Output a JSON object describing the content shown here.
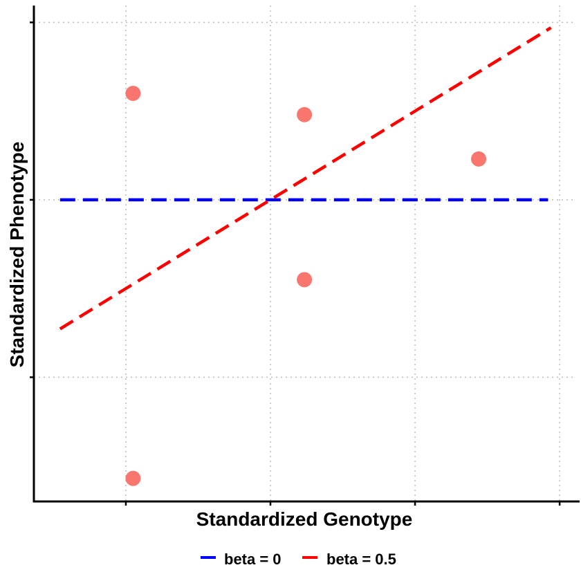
{
  "chart_data": {
    "type": "scatter",
    "title": "",
    "xlabel": "Standardized Genotype",
    "ylabel": "Standardized Phenotype",
    "xlim": [
      -1.636,
      2.1
    ],
    "ylim": [
      -1.7,
      1.095
    ],
    "x_ticks": [
      -1,
      0,
      1,
      2
    ],
    "y_ticks": [
      -1,
      0,
      1
    ],
    "grid": "dotted",
    "points": {
      "color": "#F8766D",
      "x": [
        -0.95,
        0.235,
        1.44,
        0.235,
        -0.95
      ],
      "y": [
        0.6,
        0.48,
        0.23,
        -0.45,
        -1.57
      ]
    },
    "lines": [
      {
        "name": "beta = 0",
        "color": "#0000FF",
        "intercept": 0,
        "slope": 0,
        "x_range": [
          -1.455,
          1.92
        ]
      },
      {
        "name": "beta = 0.5",
        "color": "#FF0000",
        "intercept": 0,
        "slope": 0.5,
        "x_range": [
          -1.455,
          1.94
        ]
      }
    ],
    "legend": {
      "position": "bottom",
      "entries": [
        "beta = 0",
        "beta = 0.5"
      ]
    }
  }
}
